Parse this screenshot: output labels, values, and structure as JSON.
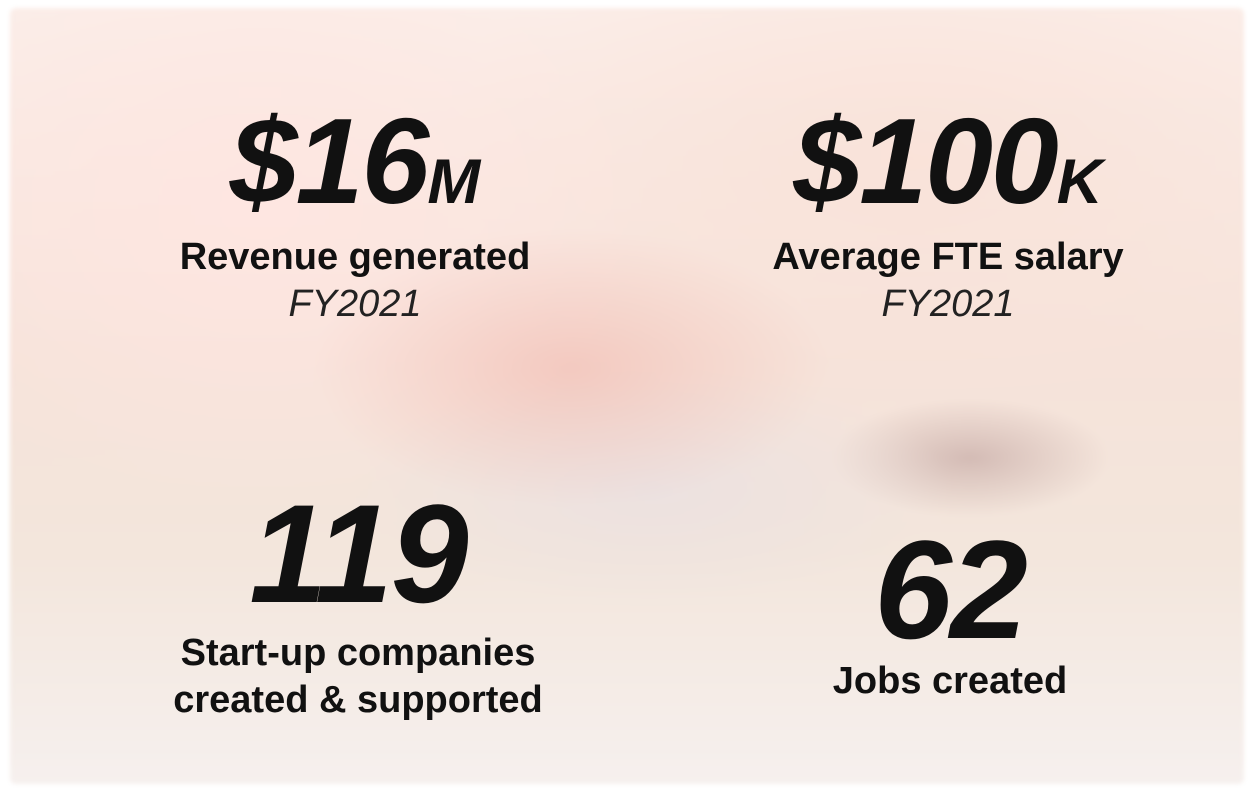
{
  "stats": [
    {
      "figure": "$16",
      "unit": "M",
      "label": [
        "Revenue generated"
      ],
      "note": "FY2021"
    },
    {
      "figure": "$100",
      "unit": "K",
      "label": [
        "Average FTE salary"
      ],
      "note": "FY2021"
    },
    {
      "figure": "119",
      "label": [
        "Start-up companies",
        "created & supported"
      ]
    },
    {
      "figure": "62",
      "label": [
        "Jobs created"
      ]
    }
  ]
}
